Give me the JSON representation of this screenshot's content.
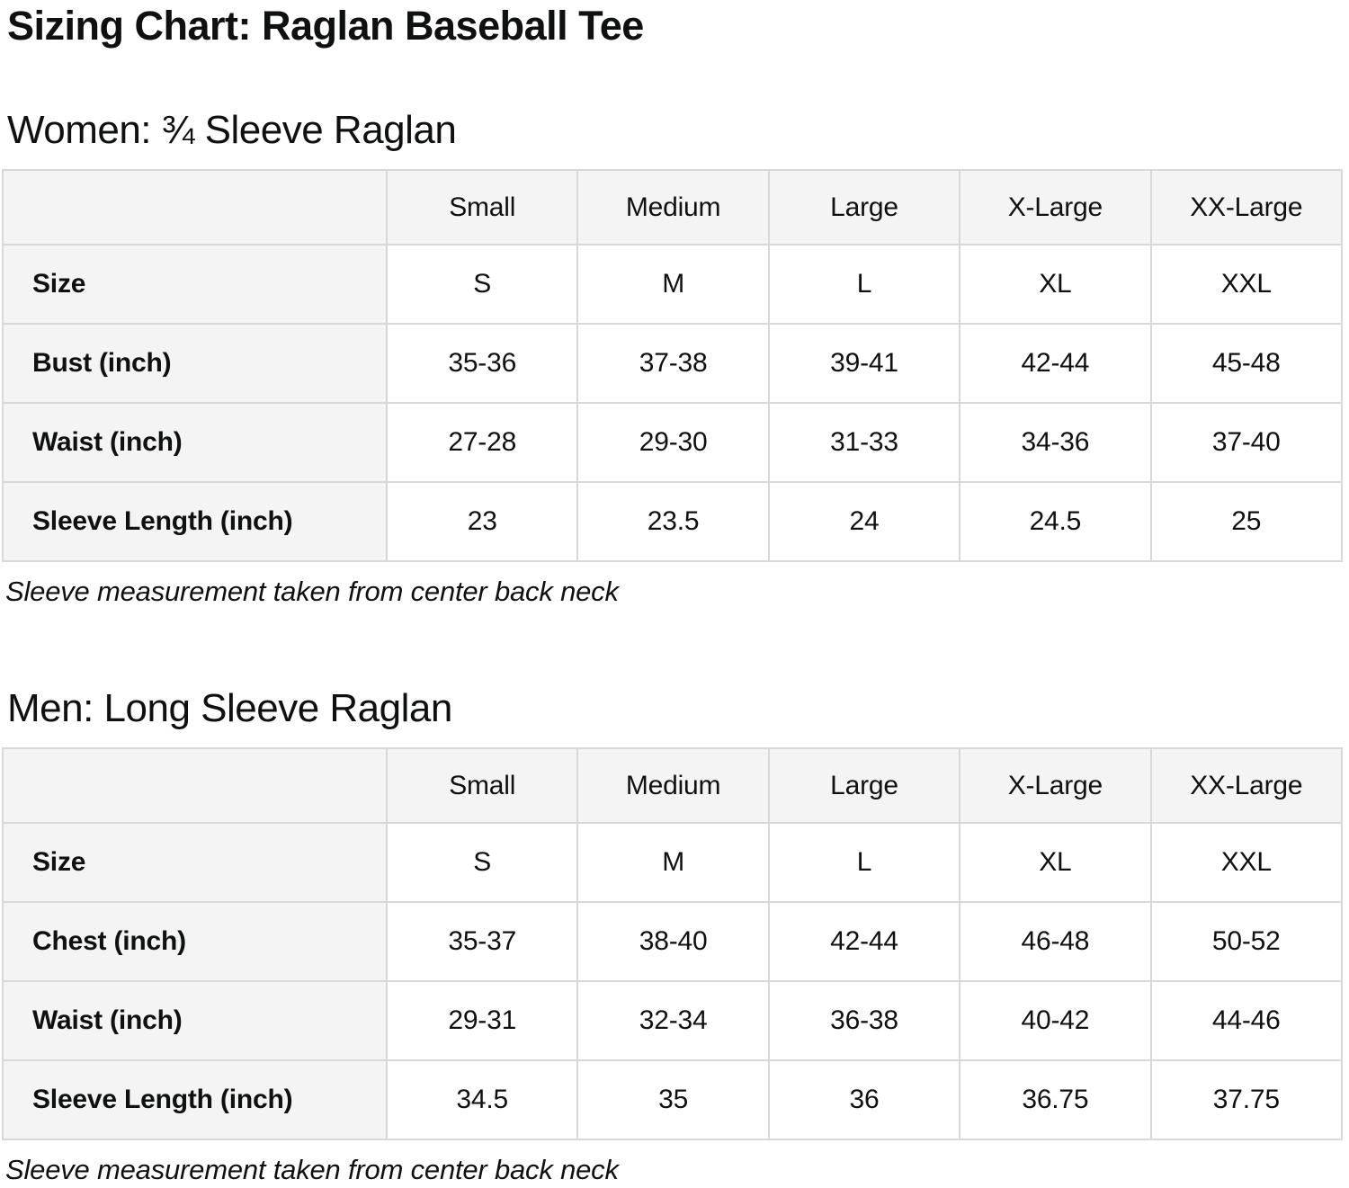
{
  "page": {
    "title": "Sizing Chart: Raglan Baseball Tee"
  },
  "colors": {
    "text": "#0f1111",
    "table_header_bg": "#f4f4f4",
    "table_border": "#d8d8d8",
    "cell_bg": "#ffffff"
  },
  "sections": [
    {
      "heading": "Women: ¾ Sleeve Raglan",
      "note": "Sleeve measurement taken from center back neck",
      "table": {
        "column_headers": [
          "",
          "Small",
          "Medium",
          "Large",
          "X-Large",
          "XX-Large"
        ],
        "rows": [
          {
            "label": "Size",
            "values": [
              "S",
              "M",
              "L",
              "XL",
              "XXL"
            ]
          },
          {
            "label": "Bust (inch)",
            "values": [
              "35-36",
              "37-38",
              "39-41",
              "42-44",
              "45-48"
            ]
          },
          {
            "label": "Waist (inch)",
            "values": [
              "27-28",
              "29-30",
              "31-33",
              "34-36",
              "37-40"
            ]
          },
          {
            "label": "Sleeve Length (inch)",
            "values": [
              "23",
              "23.5",
              "24",
              "24.5",
              "25"
            ]
          }
        ]
      }
    },
    {
      "heading": "Men: Long Sleeve Raglan",
      "note": "Sleeve measurement taken from center back neck",
      "table": {
        "column_headers": [
          "",
          "Small",
          "Medium",
          "Large",
          "X-Large",
          "XX-Large"
        ],
        "rows": [
          {
            "label": "Size",
            "values": [
              "S",
              "M",
              "L",
              "XL",
              "XXL"
            ]
          },
          {
            "label": "Chest (inch)",
            "values": [
              "35-37",
              "38-40",
              "42-44",
              "46-48",
              "50-52"
            ]
          },
          {
            "label": "Waist (inch)",
            "values": [
              "29-31",
              "32-34",
              "36-38",
              "40-42",
              "44-46"
            ]
          },
          {
            "label": "Sleeve Length (inch)",
            "values": [
              "34.5",
              "35",
              "36",
              "36.75",
              "37.75"
            ]
          }
        ]
      }
    }
  ]
}
